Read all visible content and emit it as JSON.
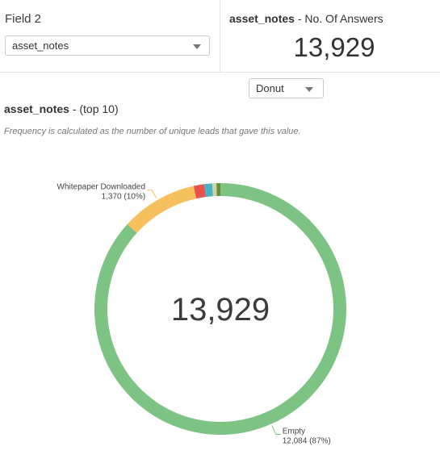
{
  "field_panel": {
    "label": "Field 2",
    "select_value": "asset_notes"
  },
  "answers_panel": {
    "field_name": "asset_notes",
    "metric_label": " - No. Of Answers",
    "value": "13,929"
  },
  "chart_type_select": {
    "value": "Donut"
  },
  "chart_header": {
    "field_name": "asset_notes",
    "suffix": " - (top 10)",
    "subtitle": "Frequency is calculated as the number of unique leads that gave this value."
  },
  "chart_data": {
    "type": "pie",
    "style": "donut",
    "center_label": "13,929",
    "total": 13929,
    "slices": [
      {
        "name": "Empty",
        "value": 12084,
        "label": "12,084 (87%)",
        "color": "#7dc383",
        "labeled": true
      },
      {
        "name": "Whitepaper Downloaded",
        "value": 1370,
        "label": "1,370 (10%)",
        "color": "#f7c05f",
        "labeled": true
      },
      {
        "name": "",
        "value": 190,
        "color": "#e8534b",
        "labeled": false
      },
      {
        "name": "",
        "value": 140,
        "color": "#4ab2c5",
        "labeled": false
      },
      {
        "name": "",
        "value": 75,
        "color": "#c9d6a3",
        "labeled": false
      },
      {
        "name": "",
        "value": 70,
        "color": "#6e8c3a",
        "labeled": false
      }
    ]
  }
}
